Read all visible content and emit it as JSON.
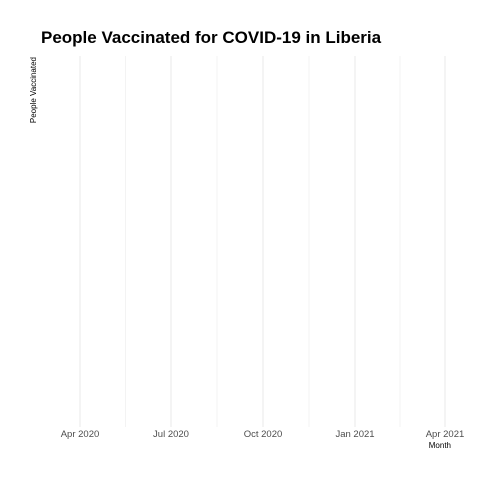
{
  "chart_data": {
    "type": "line",
    "title": "People Vaccinated for COVID-19 in Liberia",
    "xlabel": "Month",
    "ylabel": "People Vaccinated",
    "x_ticks": [
      "Apr 2020",
      "Jul 2020",
      "Oct 2020",
      "Jan 2021",
      "Apr 2021"
    ],
    "x_tick_dates": [
      "2020-04-01",
      "2020-07-01",
      "2020-10-01",
      "2021-01-01",
      "2021-04-01"
    ],
    "xlim": [
      "2020-02-22",
      "2021-04-16"
    ],
    "series": [],
    "grid": true,
    "colors": {
      "grid": "#ebebeb",
      "title": "#000000",
      "tick": "#4d4d4d",
      "background": "#ffffff"
    }
  }
}
